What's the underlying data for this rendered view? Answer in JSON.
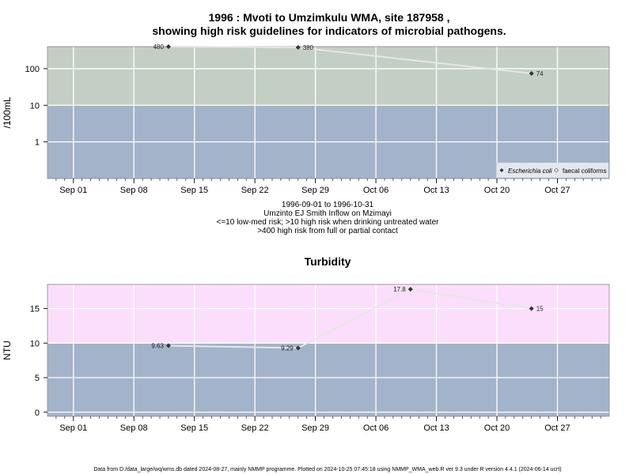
{
  "header": {
    "title_line1": "1996 : Mvoti to Umzimkulu WMA, site 187958 ,",
    "title_line2": "showing high risk guidelines for indicators of microbial pathogens."
  },
  "subtitle": {
    "line1": "1996-09-01 to 1996-10-31",
    "line2": "Umzinto EJ Smith Inflow on Mzimayi",
    "line3": "<=10 low-med risk; >10 high risk when drinking untreated water",
    "line4": ">400 high risk from full or partial contact"
  },
  "footer": {
    "text": "Data from D:/data_large/wq/wms.db dated 2024-08-27, mainly NMMP programme. Plotted on 2024-10-25 07:45:18 using NMMP_WMA_web.R ver 9.3 under R version 4.4.1 (2024-06-14 ucrt)"
  },
  "colors": {
    "low_band": "#a3b3ca",
    "mid_band": "#c3cfc4",
    "high_band": "#fdfbc6",
    "turb_high_band": "#fbdefb",
    "grid": "#ffffff",
    "line": "#e6e6e6",
    "point": "#333333"
  },
  "chart_data": [
    {
      "type": "line",
      "title": "",
      "ylabel": "/100mL",
      "yscale": "log",
      "ylim": [
        0.1,
        400
      ],
      "x_ticks": [
        "Sep 01",
        "Sep 08",
        "Sep 15",
        "Sep 22",
        "Sep 29",
        "Oct 06",
        "Oct 13",
        "Oct 20",
        "Oct 27"
      ],
      "x_tick_dates": [
        "1996-09-01",
        "1996-09-08",
        "1996-09-15",
        "1996-09-22",
        "1996-09-29",
        "1996-10-06",
        "1996-10-13",
        "1996-10-20",
        "1996-10-27"
      ],
      "xlim": [
        "1996-08-29",
        "1996-11-02"
      ],
      "y_ticks": [
        1,
        10,
        100
      ],
      "y_tick_labels": [
        "1",
        "10",
        "100"
      ],
      "bands": [
        {
          "from": 0.1,
          "to": 10,
          "color": "#a3b3ca"
        },
        {
          "from": 10,
          "to": 400,
          "color": "#c3cfc4"
        },
        {
          "from": 400,
          "to": 500,
          "color": "#fdfbc6"
        }
      ],
      "legend": {
        "position": "bottom-right",
        "entries": [
          "Escherichia coli",
          "faecal coliforms"
        ]
      },
      "series": [
        {
          "name": "Escherichia coli",
          "x": [
            "1996-09-12",
            "1996-09-27",
            "1996-10-24"
          ],
          "values": [
            480,
            380,
            74
          ],
          "labels": [
            "480",
            "380",
            "74"
          ]
        }
      ]
    },
    {
      "type": "line",
      "title": "Turbidity",
      "ylabel": "NTU",
      "yscale": "linear",
      "ylim": [
        -0.6,
        18.5
      ],
      "x_ticks": [
        "Sep 01",
        "Sep 08",
        "Sep 15",
        "Sep 22",
        "Sep 29",
        "Oct 06",
        "Oct 13",
        "Oct 20",
        "Oct 27"
      ],
      "x_tick_dates": [
        "1996-09-01",
        "1996-09-08",
        "1996-09-15",
        "1996-09-22",
        "1996-09-29",
        "1996-10-06",
        "1996-10-13",
        "1996-10-20",
        "1996-10-27"
      ],
      "xlim": [
        "1996-08-29",
        "1996-11-02"
      ],
      "y_ticks": [
        0,
        5,
        10,
        15
      ],
      "y_tick_labels": [
        "0",
        "5",
        "10",
        "15"
      ],
      "bands": [
        {
          "from": -0.6,
          "to": 10,
          "color": "#a3b3ca"
        },
        {
          "from": 10,
          "to": 18.5,
          "color": "#fbdefb"
        }
      ],
      "series": [
        {
          "x": [
            "1996-09-12",
            "1996-09-27",
            "1996-10-10",
            "1996-10-24"
          ],
          "values": [
            9.63,
            9.29,
            17.8,
            15
          ],
          "labels": [
            "9.63",
            "9.29",
            "17.8",
            "15"
          ]
        }
      ]
    }
  ]
}
